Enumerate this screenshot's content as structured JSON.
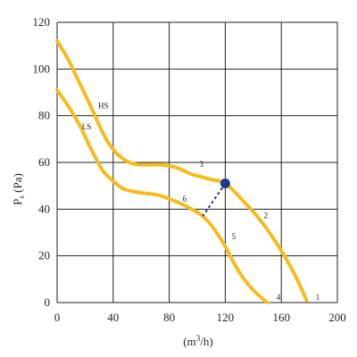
{
  "chart_data": {
    "type": "line",
    "title": "",
    "ylabel_main": "P",
    "ylabel_sub": "s",
    "ylabel_unit": " (Pa)",
    "xlabel_prefix": "(m",
    "xlabel_sup": "3",
    "xlabel_suffix": "/h)",
    "xlim": [
      0,
      200
    ],
    "ylim": [
      0,
      120
    ],
    "xticks": [
      "0",
      "40",
      "80",
      "120",
      "160",
      "200"
    ],
    "yticks": [
      "0",
      "20",
      "40",
      "60",
      "80",
      "100",
      "120"
    ],
    "grid": true,
    "colors": {
      "curve": "#F5BC1E",
      "operating_point": "#1F3A8A",
      "grid": "#222222"
    },
    "series": [
      {
        "name": "HS",
        "points": [
          [
            0,
            112
          ],
          [
            8,
            104
          ],
          [
            16,
            94
          ],
          [
            24,
            84
          ],
          [
            30,
            76
          ],
          [
            36,
            69
          ],
          [
            44,
            63
          ],
          [
            54,
            59.5
          ],
          [
            64,
            59
          ],
          [
            74,
            59
          ],
          [
            84,
            58
          ],
          [
            96,
            55
          ],
          [
            108,
            53
          ],
          [
            120,
            51
          ],
          [
            132,
            44
          ],
          [
            144,
            36
          ],
          [
            156,
            26
          ],
          [
            166,
            16
          ],
          [
            172,
            9
          ],
          [
            178,
            1
          ]
        ]
      },
      {
        "name": "LS",
        "points": [
          [
            0,
            91
          ],
          [
            8,
            84
          ],
          [
            16,
            76
          ],
          [
            24,
            66
          ],
          [
            32,
            57
          ],
          [
            40,
            52
          ],
          [
            48,
            48.5
          ],
          [
            60,
            47
          ],
          [
            72,
            46
          ],
          [
            84,
            43.5
          ],
          [
            96,
            40
          ],
          [
            104,
            37
          ],
          [
            112,
            31.5
          ],
          [
            120,
            24
          ],
          [
            128,
            15
          ],
          [
            136,
            8
          ],
          [
            144,
            3
          ],
          [
            150,
            0
          ]
        ]
      }
    ],
    "curve_labels": [
      {
        "text": "HS",
        "x": 33,
        "y": 82
      },
      {
        "text": "LS",
        "x": 21,
        "y": 73
      },
      {
        "text": "3",
        "x": 103,
        "y": 57
      },
      {
        "text": "6",
        "x": 91,
        "y": 42
      },
      {
        "text": "2",
        "x": 149,
        "y": 35
      },
      {
        "text": "5",
        "x": 126,
        "y": 26
      },
      {
        "text": "4",
        "x": 158,
        "y": 0
      },
      {
        "text": "1",
        "x": 186,
        "y": 0
      }
    ],
    "operating_point": {
      "x": 120,
      "y": 51
    },
    "dashed_segment": [
      [
        120,
        51
      ],
      [
        104,
        37
      ]
    ]
  }
}
